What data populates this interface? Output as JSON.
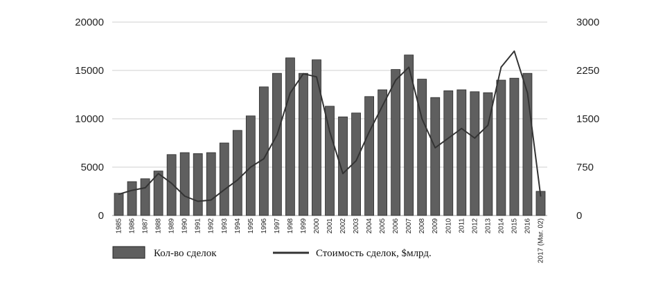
{
  "chart_data": {
    "type": "bar",
    "categories": [
      "1985",
      "1986",
      "1987",
      "1988",
      "1989",
      "1990",
      "1991",
      "1992",
      "1993",
      "1994",
      "1995",
      "1996",
      "1997",
      "1998",
      "1999",
      "2000",
      "2001",
      "2002",
      "2003",
      "2004",
      "2005",
      "2006",
      "2007",
      "2008",
      "2009",
      "2010",
      "2011",
      "2012",
      "2013",
      "2014",
      "2015",
      "2016",
      "2017 (Mar. 02)"
    ],
    "series": [
      {
        "name": "Кол-во сделок",
        "type": "bar",
        "axis": "left",
        "color": "#5f5f5f",
        "values": [
          2300,
          3500,
          3800,
          4600,
          6300,
          6500,
          6400,
          6500,
          7500,
          8800,
          10300,
          13300,
          14700,
          16300,
          14700,
          16100,
          11300,
          10200,
          10600,
          12300,
          13000,
          15100,
          16600,
          14100,
          12200,
          12900,
          13000,
          12800,
          12700,
          14000,
          14200,
          14700,
          2500
        ]
      },
      {
        "name": "Стоимость сделок, $млрд.",
        "type": "line",
        "axis": "right",
        "color": "#333333",
        "values": [
          330,
          390,
          430,
          650,
          500,
          300,
          220,
          240,
          400,
          550,
          750,
          880,
          1250,
          1900,
          2200,
          2150,
          1300,
          650,
          850,
          1300,
          1700,
          2100,
          2300,
          1500,
          1050,
          1200,
          1350,
          1200,
          1400,
          2300,
          2550,
          1900,
          300
        ]
      }
    ],
    "ylim_left": [
      0,
      20000
    ],
    "ylim_right": [
      0,
      3000
    ],
    "yticks_left": [
      "0",
      "5000",
      "10000",
      "15000",
      "20000"
    ],
    "yticks_right": [
      "0",
      "750",
      "1500",
      "2250",
      "3000"
    ],
    "grid": "horizontal",
    "legend": "bottom-left",
    "title": "",
    "xlabel": "",
    "ylabel": ""
  }
}
